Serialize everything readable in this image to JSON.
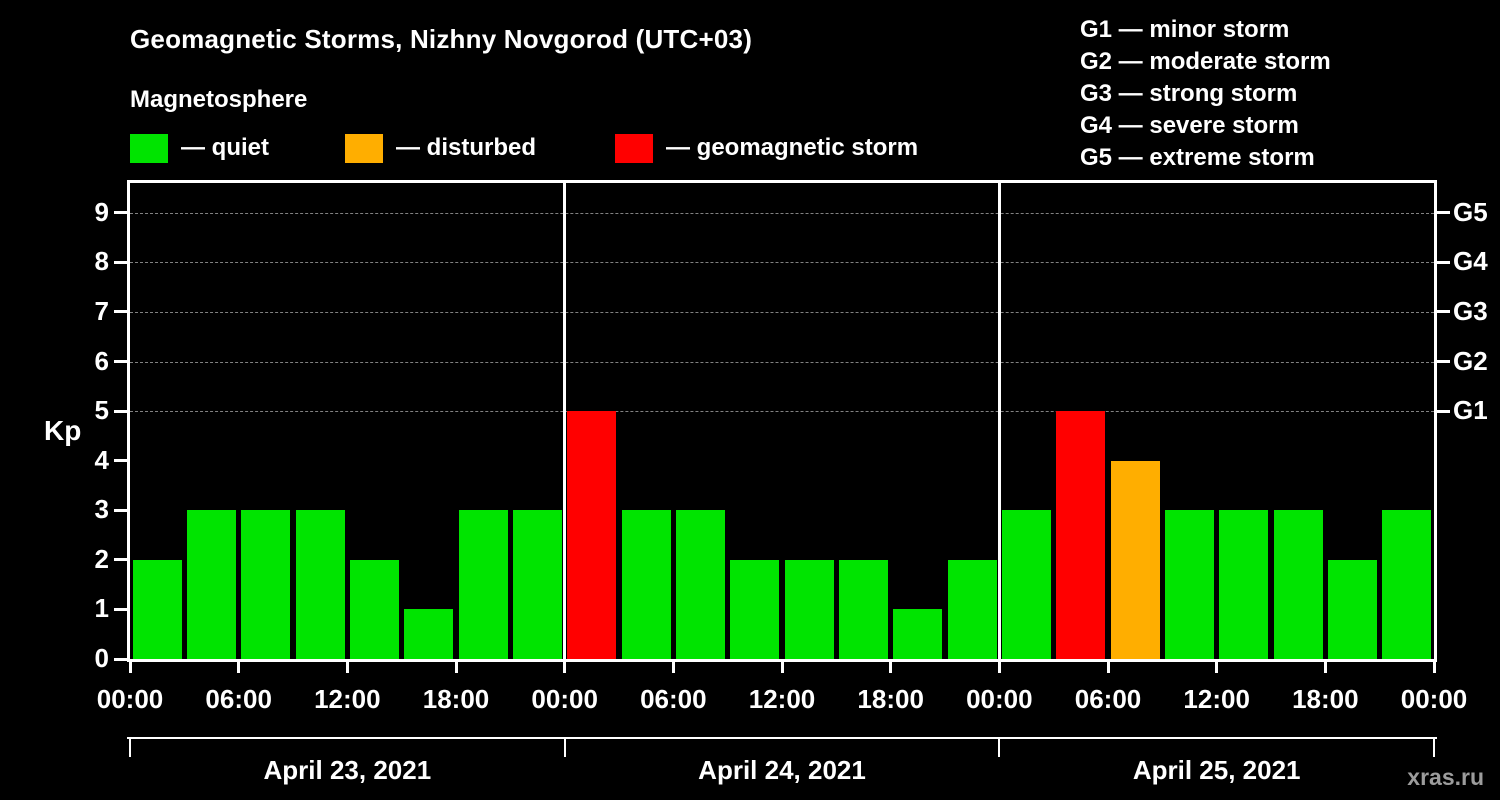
{
  "title": "Geomagnetic Storms, Nizhny Novgorod (UTC+03)",
  "subtitle": "Magnetosphere",
  "watermark": "xras.ru",
  "colors": {
    "quiet": "#00e400",
    "disturbed": "#ffae00",
    "storm": "#ff0000",
    "background": "#000000",
    "text": "#ffffff",
    "grid": "#828282"
  },
  "legend": [
    {
      "status": "quiet",
      "label": "— quiet"
    },
    {
      "status": "disturbed",
      "label": "— disturbed"
    },
    {
      "status": "storm",
      "label": "— geomagnetic storm"
    }
  ],
  "g_legend": [
    "G1 — minor storm",
    "G2 — moderate storm",
    "G3 — strong storm",
    "G4 — severe storm",
    "G5 — extreme storm"
  ],
  "chart_data": {
    "type": "bar",
    "title": "Geomagnetic Storms, Nizhny Novgorod (UTC+03)",
    "ylabel": "Kp",
    "ylim": [
      0,
      9.6
    ],
    "yticks": [
      0,
      1,
      2,
      3,
      4,
      5,
      6,
      7,
      8,
      9
    ],
    "gridlines_kp": [
      5,
      6,
      7,
      8,
      9
    ],
    "right_axis": [
      {
        "label": "G1",
        "kp": 5
      },
      {
        "label": "G2",
        "kp": 6
      },
      {
        "label": "G3",
        "kp": 7
      },
      {
        "label": "G4",
        "kp": 8
      },
      {
        "label": "G5",
        "kp": 9
      }
    ],
    "x_tick_labels": [
      "00:00",
      "06:00",
      "12:00",
      "18:00",
      "00:00",
      "06:00",
      "12:00",
      "18:00",
      "00:00",
      "06:00",
      "12:00",
      "18:00",
      "00:00"
    ],
    "bar_interval_hours": 3,
    "days": [
      {
        "date": "April 23, 2021",
        "kp": [
          2,
          3,
          3,
          3,
          2,
          1,
          3,
          3
        ],
        "status": [
          "quiet",
          "quiet",
          "quiet",
          "quiet",
          "quiet",
          "quiet",
          "quiet",
          "quiet"
        ]
      },
      {
        "date": "April 24, 2021",
        "kp": [
          5,
          3,
          3,
          2,
          2,
          2,
          1,
          2
        ],
        "status": [
          "storm",
          "quiet",
          "quiet",
          "quiet",
          "quiet",
          "quiet",
          "quiet",
          "quiet"
        ]
      },
      {
        "date": "April 25, 2021",
        "kp": [
          3,
          5,
          4,
          3,
          3,
          3,
          2,
          3
        ],
        "status": [
          "quiet",
          "storm",
          "disturbed",
          "quiet",
          "quiet",
          "quiet",
          "quiet",
          "quiet"
        ]
      }
    ]
  }
}
